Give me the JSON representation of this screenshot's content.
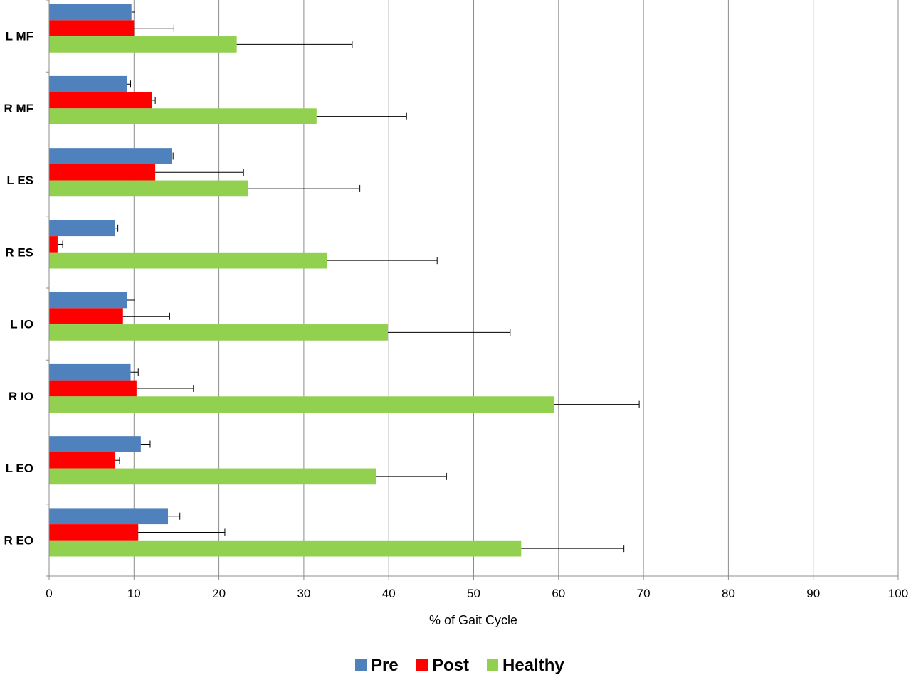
{
  "chart_data": {
    "type": "bar",
    "orientation": "horizontal",
    "title": "",
    "xlabel": "% of Gait Cycle",
    "ylabel": "",
    "xlim": [
      0,
      100
    ],
    "x_ticks": [
      0,
      10,
      20,
      30,
      40,
      50,
      60,
      70,
      80,
      90,
      100
    ],
    "grid": "vertical",
    "legend_position": "bottom",
    "categories": [
      "L MF",
      "R MF",
      "L ES",
      "R ES",
      "L IO",
      "R IO",
      "L EO",
      "R EO"
    ],
    "series": [
      {
        "name": "Pre",
        "color": "#4F81BD",
        "values": [
          9.7,
          9.2,
          14.5,
          7.8,
          9.2,
          9.6,
          10.8,
          14.0
        ],
        "error": [
          0.4,
          0.4,
          0.1,
          0.3,
          0.9,
          0.9,
          1.1,
          1.4
        ]
      },
      {
        "name": "Post",
        "color": "#FF0000",
        "values": [
          10.0,
          12.1,
          12.5,
          1.0,
          8.7,
          10.3,
          7.8,
          10.5
        ],
        "error": [
          4.7,
          0.4,
          10.4,
          0.6,
          5.5,
          6.7,
          0.5,
          10.2
        ]
      },
      {
        "name": "Healthy",
        "color": "#92D050",
        "values": [
          22.1,
          31.5,
          23.4,
          32.7,
          39.9,
          59.5,
          38.5,
          55.6
        ],
        "error": [
          13.6,
          10.6,
          13.2,
          13.0,
          14.4,
          10.0,
          8.3,
          12.1
        ]
      }
    ]
  }
}
